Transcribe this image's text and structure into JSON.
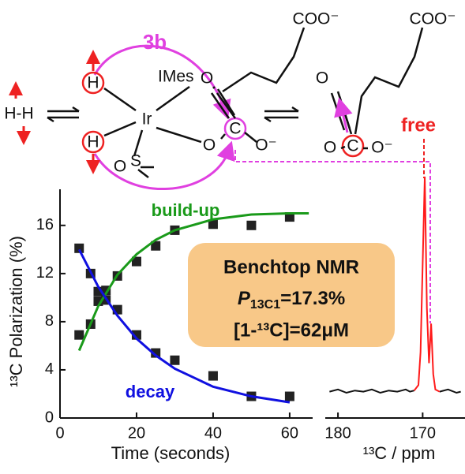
{
  "diagram": {
    "label_3b": "3b",
    "imes": "IMes",
    "ir": "Ir",
    "h_top": "H",
    "h_bottom": "H",
    "h2": "H-H",
    "sulfur": "S",
    "sulfoxide_o": "O",
    "keto_o": "O",
    "ester_o": "O",
    "carbon": "C",
    "anion_o": "O⁻",
    "coo": "COO⁻",
    "free_keto_o": "O",
    "free_o": "O",
    "free_carbon": "C",
    "free_anion_o": "O⁻",
    "free_coo": "COO⁻",
    "free": "free"
  },
  "annotation": {
    "title": "Benchtop NMR",
    "p_symbol": "P",
    "p_subscript": "13C1",
    "p_value": "=17.3%",
    "concentration": "[1-¹³C]=62μM"
  },
  "chart_data": [
    {
      "type": "scatter",
      "y_label": "¹³C Polarization (%)",
      "x_label": "Time (seconds)",
      "xlim": [
        0,
        66
      ],
      "ylim": [
        0,
        19
      ],
      "xticks": [
        0,
        20,
        40,
        60
      ],
      "yticks": [
        0,
        4,
        8,
        12,
        16
      ],
      "annotations": [
        {
          "text": "build-up",
          "color": "#1a9a1a"
        },
        {
          "text": "decay",
          "color": "#1010e0"
        }
      ],
      "series": [
        {
          "style": "markers",
          "color": "#222222",
          "x": [
            5,
            8,
            10,
            12,
            15,
            20,
            25,
            30,
            40,
            50,
            60
          ],
          "values": [
            6.9,
            7.8,
            9.7,
            10.6,
            11.8,
            13.0,
            14.3,
            15.6,
            16.1,
            16.0,
            16.7
          ]
        },
        {
          "style": "markers",
          "color": "#222222",
          "x": [
            5,
            8,
            10,
            12,
            15,
            20,
            25,
            30,
            40,
            50,
            60
          ],
          "values": [
            14.1,
            12.0,
            10.5,
            9.8,
            9.0,
            6.9,
            5.4,
            4.8,
            3.5,
            1.8,
            1.8
          ]
        },
        {
          "style": "line",
          "color": "#1a9a1a",
          "x": [
            5,
            10,
            15,
            20,
            25,
            30,
            40,
            50,
            60,
            65
          ],
          "values": [
            5.6,
            9.3,
            11.9,
            13.6,
            14.8,
            15.6,
            16.5,
            16.9,
            17.0,
            17.0
          ]
        },
        {
          "style": "line",
          "color": "#1010e0",
          "x": [
            5,
            10,
            15,
            20,
            25,
            30,
            40,
            50,
            60
          ],
          "values": [
            14.0,
            10.9,
            8.5,
            6.6,
            5.2,
            4.1,
            2.6,
            1.8,
            1.3
          ]
        }
      ]
    },
    {
      "type": "spectrum",
      "x_label": "¹³C / ppm",
      "xlim": [
        181.5,
        165
      ],
      "ylim": [
        -10,
        105
      ],
      "xticks": [
        180,
        170
      ],
      "x": [
        181,
        180,
        179,
        178,
        177,
        176,
        175,
        174,
        173,
        172,
        171.5,
        171,
        170.5,
        170.25,
        170,
        169.75,
        169.5,
        169.25,
        169,
        168.75,
        168.5,
        168,
        167,
        166,
        165.5
      ],
      "series": [
        {
          "color": "#111111",
          "values": [
            2,
            3,
            1.5,
            2.5,
            2,
            3,
            1.5,
            2.5,
            2,
            3,
            2,
            2.5,
            null,
            null,
            null,
            null,
            null,
            null,
            null,
            null,
            null,
            2,
            3,
            1.5,
            2
          ]
        },
        {
          "color": "#ff1a1a",
          "values": [
            null,
            null,
            null,
            null,
            null,
            null,
            null,
            null,
            null,
            null,
            null,
            2.5,
            5,
            20,
            60,
            100,
            40,
            15,
            33,
            10,
            3,
            2,
            null,
            null,
            null
          ]
        }
      ]
    }
  ]
}
